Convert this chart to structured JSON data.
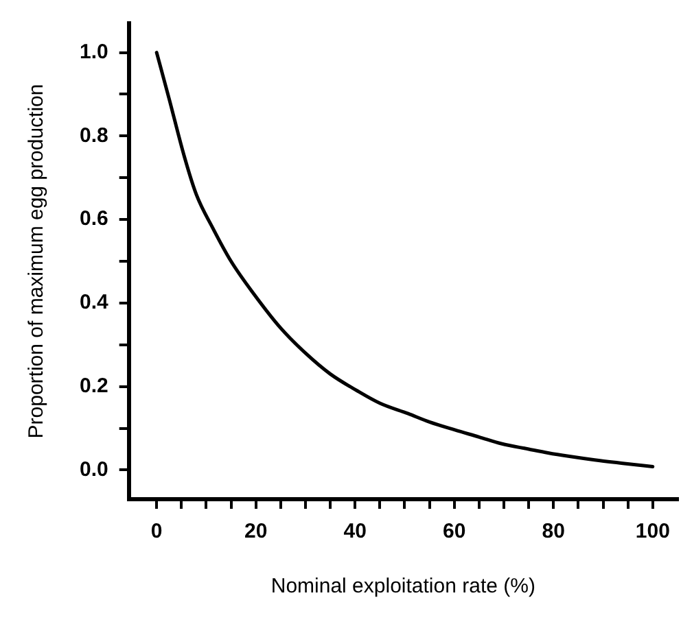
{
  "chart_data": {
    "type": "line",
    "xlabel": "Nominal exploitation rate (%)",
    "ylabel": "Proportion of maximum egg production",
    "x": [
      0,
      2.5,
      5.6,
      8,
      11.3,
      15,
      19.7,
      25,
      30,
      35,
      40.4,
      45,
      50.7,
      55,
      60.1,
      65,
      69.5,
      75,
      78.9,
      83,
      88.3,
      94,
      100
    ],
    "series": [
      {
        "color": "#000000",
        "values": [
          1.0,
          0.89,
          0.75,
          0.66,
          0.58,
          0.5,
          0.42,
          0.34,
          0.28,
          0.23,
          0.19,
          0.16,
          0.135,
          0.115,
          0.096,
          0.079,
          0.063,
          0.05,
          0.041,
          0.033,
          0.024,
          0.016,
          0.008
        ]
      }
    ],
    "xlim": [
      -5.6,
      105
    ],
    "ylim": [
      -0.07,
      1.07
    ],
    "xticks": [
      0,
      {
        "value": 5,
        "label": null
      },
      {
        "value": 10,
        "label": null
      },
      {
        "value": 15,
        "label": null
      },
      20,
      {
        "value": 25,
        "label": null
      },
      {
        "value": 30,
        "label": null
      },
      {
        "value": 35,
        "label": null
      },
      40,
      {
        "value": 45,
        "label": null
      },
      {
        "value": 50,
        "label": null
      },
      {
        "value": 55,
        "label": null
      },
      60,
      {
        "value": 65,
        "label": null
      },
      {
        "value": 70,
        "label": null
      },
      {
        "value": 75,
        "label": null
      },
      80,
      {
        "value": 85,
        "label": null
      },
      {
        "value": 90,
        "label": null
      },
      {
        "value": 95,
        "label": null
      },
      100
    ],
    "yticks": [
      {
        "value": 0,
        "label": "0.0"
      },
      {
        "value": 0.1,
        "label": null
      },
      {
        "value": 0.2,
        "label": "0.2"
      },
      {
        "value": 0.3,
        "label": null
      },
      {
        "value": 0.4,
        "label": "0.4"
      },
      {
        "value": 0.5,
        "label": null
      },
      {
        "value": 0.6,
        "label": "0.6"
      },
      {
        "value": 0.7,
        "label": null
      },
      {
        "value": 0.8,
        "label": "0.8"
      },
      {
        "value": 0.9,
        "label": null
      },
      {
        "value": 1,
        "label": "1.0"
      }
    ],
    "legend": false,
    "marker": "none",
    "line_style": "solid"
  }
}
